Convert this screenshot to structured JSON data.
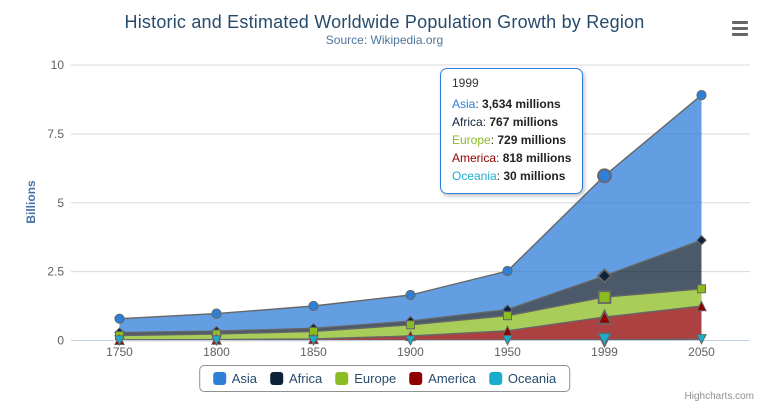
{
  "header": {
    "title": "Historic and Estimated Worldwide Population Growth by Region",
    "subtitle": "Source: Wikipedia.org"
  },
  "credits": "Highcharts.com",
  "context_menu_icon": "hamburger-icon",
  "colors": {
    "title": "#274b6d",
    "subtitle": "#4d759e",
    "yaxis_title": "#4572a7",
    "axis_label": "#606060",
    "gridline": "#d8d8d8",
    "xaxis_line": "#c0d0e0",
    "series_line": "#666666",
    "legend_border": "#909090",
    "legend_text": "#274b6d",
    "tooltip_border": "#2f7ed8",
    "credits_text": "#909090"
  },
  "chart_data": {
    "type": "area",
    "stacking": "normal",
    "title": "Historic and Estimated Worldwide Population Growth by Region",
    "subtitle": "Source: Wikipedia.org",
    "xlabel": "",
    "ylabel": "Billions",
    "unit_of_values": "millions",
    "categories": [
      "1750",
      "1800",
      "1850",
      "1900",
      "1950",
      "1999",
      "2050"
    ],
    "series": [
      {
        "name": "Asia",
        "color": "#2f7ed8",
        "marker": "circle",
        "values": [
          502,
          635,
          809,
          947,
          1402,
          3634,
          5268
        ]
      },
      {
        "name": "Africa",
        "color": "#0d233a",
        "marker": "diamond",
        "values": [
          106,
          107,
          111,
          133,
          221,
          767,
          1766
        ]
      },
      {
        "name": "Europe",
        "color": "#8bbc21",
        "marker": "square",
        "values": [
          163,
          203,
          276,
          408,
          547,
          729,
          628
        ]
      },
      {
        "name": "America",
        "color": "#910000",
        "marker": "triangle",
        "values": [
          18,
          31,
          54,
          156,
          339,
          818,
          1201
        ]
      },
      {
        "name": "Oceania",
        "color": "#1aadce",
        "marker": "triangle-down",
        "values": [
          2,
          2,
          2,
          6,
          13,
          30,
          46
        ]
      }
    ],
    "yticks": [
      0,
      2.5,
      5,
      7.5,
      10
    ],
    "ytick_labels": [
      "0",
      "2.5",
      "5",
      "7.5",
      "10"
    ],
    "ylim": [
      0,
      10
    ],
    "grid": true,
    "legend_position": "bottom",
    "area_fill_opacity": 0.75,
    "hover_category_index": 5
  },
  "tooltip": {
    "header": "1999",
    "rows": [
      {
        "name": "Asia",
        "value": "3,634 millions"
      },
      {
        "name": "Africa",
        "value": "767 millions"
      },
      {
        "name": "Europe",
        "value": "729 millions"
      },
      {
        "name": "America",
        "value": "818 millions"
      },
      {
        "name": "Oceania",
        "value": "30 millions"
      }
    ]
  }
}
